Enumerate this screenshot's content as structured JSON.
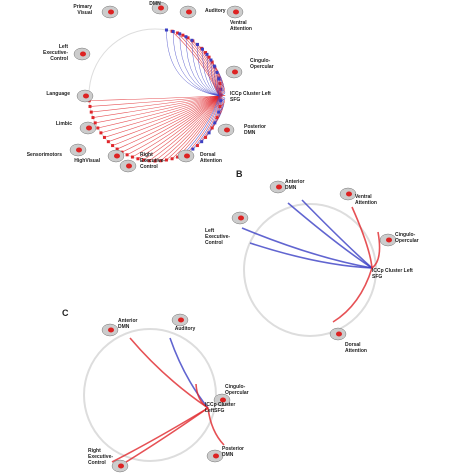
{
  "panels": [
    {
      "letter": null,
      "nodes": [
        {
          "label": [
            "DMN"
          ]
        },
        {
          "label": [
            "Primary",
            "Visual"
          ]
        },
        {
          "label": [
            "Auditory"
          ]
        },
        {
          "label": [
            "Ventral",
            "Attention"
          ]
        },
        {
          "label": [
            "Left",
            "Executive-",
            "Control"
          ]
        },
        {
          "label": [
            "Cingulo-",
            "Opercular"
          ]
        },
        {
          "label": [
            "Language"
          ]
        },
        {
          "label": [
            "ICCp Cluster Left",
            "SFG"
          ]
        },
        {
          "label": [
            "Limbic"
          ]
        },
        {
          "label": [
            "Posterior",
            "DMN"
          ]
        },
        {
          "label": [
            "Sensorimotors"
          ]
        },
        {
          "label": [
            "Dorsal",
            "Attention"
          ]
        },
        {
          "label": [
            "HighVisual"
          ]
        },
        {
          "label": [
            "Right",
            "Executive-",
            "Control"
          ]
        }
      ]
    },
    {
      "letter": "B",
      "nodes": [
        {
          "label": [
            "Anterior",
            "DMN"
          ]
        },
        {
          "label": [
            "Ventral",
            "Attention"
          ]
        },
        {
          "label": [
            "Left",
            "Executive-",
            "Control"
          ]
        },
        {
          "label": [
            "Cingulo-",
            "Opercular"
          ]
        },
        {
          "label": [
            "ICCp Cluster Left",
            "SFG"
          ]
        },
        {
          "label": [
            "Dorsal",
            "Attention"
          ]
        }
      ]
    },
    {
      "letter": "C",
      "nodes": [
        {
          "label": [
            "Anterior",
            "DMN"
          ]
        },
        {
          "label": [
            "Auditory"
          ]
        },
        {
          "label": [
            "Cingulo-",
            "Opercular"
          ]
        },
        {
          "label": [
            "ICCp Cluster",
            "LeftSFG"
          ]
        },
        {
          "label": [
            "Posterior",
            "DMN"
          ]
        },
        {
          "label": [
            "Right",
            "Executive-",
            "Control"
          ]
        }
      ]
    }
  ]
}
